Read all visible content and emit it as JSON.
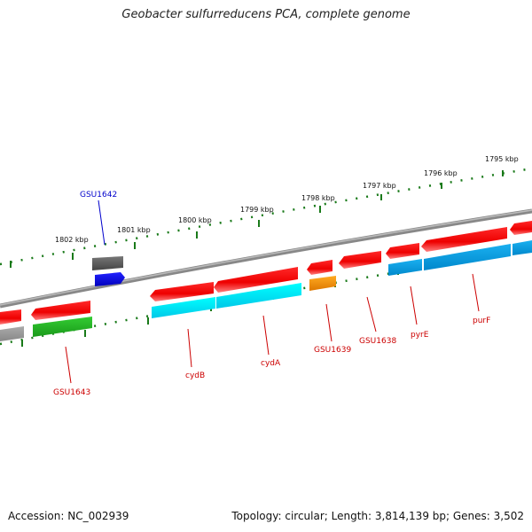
{
  "title": "Geobacter sulfurreducens PCA, complete genome",
  "footer": {
    "accession": "Accession: NC_002939",
    "topology": "Topology: circular; Length: 3,814,139 bp; Genes: 3,502"
  },
  "ticks": [
    "1795 kbp",
    "1796 kbp",
    "1797 kbp",
    "1798 kbp",
    "1799 kbp",
    "1800 kbp",
    "1801 kbp",
    "1802 kbp"
  ],
  "genes": [
    {
      "label": "GSU1642",
      "color": "#0000cc"
    },
    {
      "label": "GSU1643",
      "color": "#cc0000"
    },
    {
      "label": "cydB",
      "color": "#cc0000"
    },
    {
      "label": "cydA",
      "color": "#cc0000"
    },
    {
      "label": "GSU1639",
      "color": "#cc0000"
    },
    {
      "label": "GSU1638",
      "color": "#cc0000"
    },
    {
      "label": "pyrE",
      "color": "#cc0000"
    },
    {
      "label": "purF",
      "color": "#cc0000"
    }
  ],
  "colors": {
    "forward_strand": "#ff0000",
    "reverse_strand": "#ff0000",
    "cog_cyan": "#00e5ff",
    "cog_blue": "#0099dd",
    "cog_green": "#22bb22",
    "cog_orange": "#ff9900",
    "cog_gray": "#666666",
    "backbone": "#888888",
    "tick": "#1a7a1a"
  }
}
